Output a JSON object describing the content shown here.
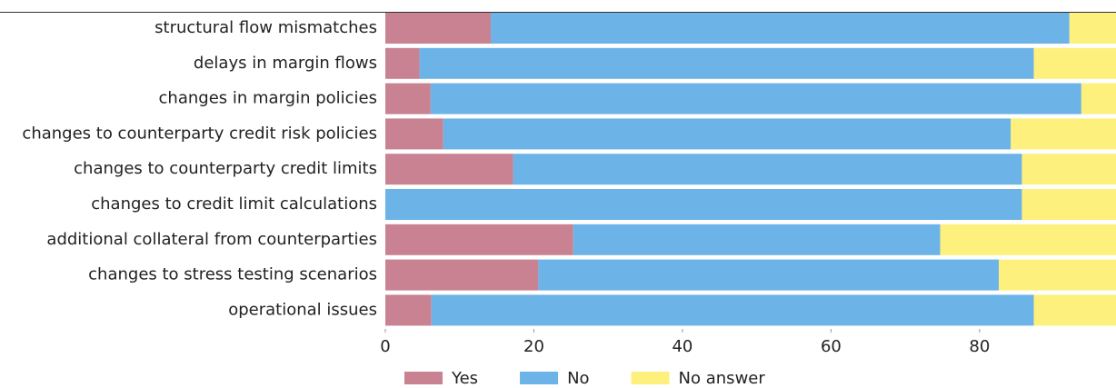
{
  "chart_data": {
    "type": "stacked-bar-horizontal",
    "categories": [
      "structural flow mismatches",
      "delays in margin flows",
      "changes in margin policies",
      "changes to counterparty credit risk policies",
      "changes to counterparty credit limits",
      "changes to credit limit calculations",
      "additional collateral from counterparties",
      "changes to stress testing scenarios",
      "operational issues"
    ],
    "series": [
      {
        "name": "Yes",
        "color": "#c98291",
        "values": [
          14.2,
          4.6,
          6.1,
          7.8,
          17.2,
          0,
          25.3,
          20.6,
          6.2
        ]
      },
      {
        "name": "No",
        "color": "#6cb3e8",
        "values": [
          77.9,
          82.7,
          87.6,
          76.4,
          68.5,
          85.7,
          49.4,
          62.0,
          81.1
        ]
      },
      {
        "name": "No answer",
        "color": "#fdf07c",
        "values": [
          7.9,
          12.7,
          6.3,
          15.8,
          14.3,
          14.3,
          25.3,
          17.4,
          12.7
        ]
      }
    ],
    "xlim": [
      0,
      98
    ],
    "xticks": [
      0,
      20,
      40,
      60,
      80
    ]
  }
}
